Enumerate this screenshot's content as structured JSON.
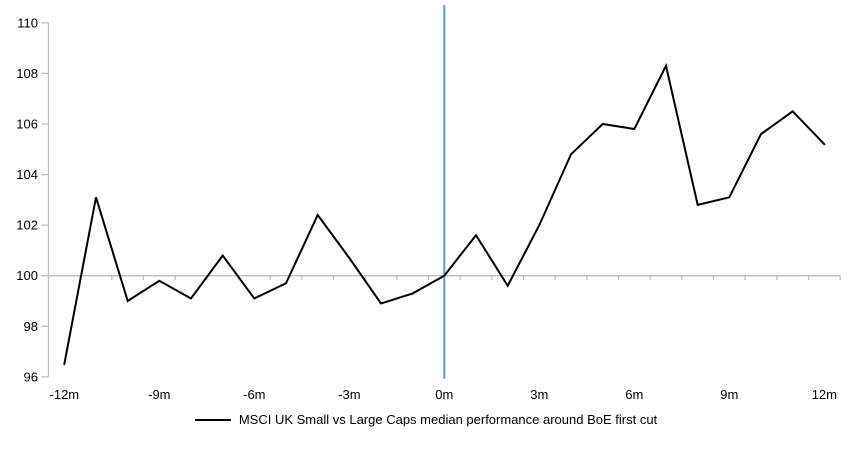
{
  "chart_data": {
    "type": "line",
    "title": "",
    "x": [
      -12,
      -11,
      -10,
      -9,
      -8,
      -7,
      -6,
      -5,
      -4,
      -3,
      -2,
      -1,
      0,
      1,
      2,
      3,
      4,
      5,
      6,
      7,
      8,
      9,
      10,
      11,
      12
    ],
    "series": [
      {
        "name": "MSCI UK Small vs Large Caps median performance around BoE first cut",
        "color": "#000000",
        "values": [
          96.5,
          103.1,
          99.0,
          99.8,
          99.1,
          100.8,
          99.1,
          99.7,
          102.4,
          100.7,
          98.9,
          99.3,
          100.0,
          101.6,
          99.6,
          102.0,
          104.8,
          106.0,
          105.8,
          108.3,
          102.8,
          103.1,
          105.6,
          106.5,
          105.2
        ]
      }
    ],
    "xlabel": "",
    "ylabel": "",
    "ylim": [
      96,
      110
    ],
    "y_tick_step": 2,
    "y_tick_labels": [
      "96",
      "98",
      "100",
      "102",
      "104",
      "106",
      "108",
      "110"
    ],
    "x_tick_months": [
      -12,
      -9,
      -6,
      -3,
      0,
      3,
      6,
      9,
      12
    ],
    "x_tick_labels": [
      "-12m",
      "-9m",
      "-6m",
      "-3m",
      "0m",
      "3m",
      "6m",
      "9m",
      "12m"
    ],
    "baseline_value": 100,
    "event_line": {
      "x": 0,
      "color": "#5B9BD5"
    },
    "axis_color": "#BFBFBF",
    "grid": "off",
    "legend_position": "bottom",
    "background": "#FFFFFF"
  },
  "legend": {
    "label": "MSCI UK Small vs Large Caps median performance around BoE first cut"
  }
}
